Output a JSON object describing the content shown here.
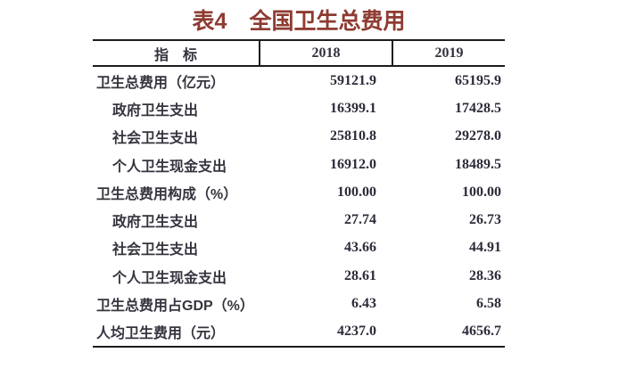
{
  "page": {
    "title": "表4　全国卫生总费用",
    "colors": {
      "title_text": "#8E3B31",
      "body_text": "#32323E",
      "border": "#1C1C1C",
      "background": "#FFFFFF"
    }
  },
  "table": {
    "columns": {
      "indicator": "指　标",
      "year1": "2018",
      "year2": "2019"
    },
    "rows": [
      {
        "label": "卫生总费用（亿元）",
        "indent": false,
        "v2018": "59121.9",
        "v2019": "65195.9"
      },
      {
        "label": "政府卫生支出",
        "indent": true,
        "v2018": "16399.1",
        "v2019": "17428.5"
      },
      {
        "label": "社会卫生支出",
        "indent": true,
        "v2018": "25810.8",
        "v2019": "29278.0"
      },
      {
        "label": "个人卫生现金支出",
        "indent": true,
        "v2018": "16912.0",
        "v2019": "18489.5"
      },
      {
        "label": "卫生总费用构成（%）",
        "indent": false,
        "v2018": "100.00",
        "v2019": "100.00"
      },
      {
        "label": "政府卫生支出",
        "indent": true,
        "v2018": "27.74",
        "v2019": "26.73"
      },
      {
        "label": "社会卫生支出",
        "indent": true,
        "v2018": "43.66",
        "v2019": "44.91"
      },
      {
        "label": "个人卫生现金支出",
        "indent": true,
        "v2018": "28.61",
        "v2019": "28.36"
      },
      {
        "label": "卫生总费用占GDP（%）",
        "indent": false,
        "v2018": "6.43",
        "v2019": "6.58"
      },
      {
        "label": "人均卫生费用（元）",
        "indent": false,
        "v2018": "4237.0",
        "v2019": "4656.7"
      }
    ]
  }
}
